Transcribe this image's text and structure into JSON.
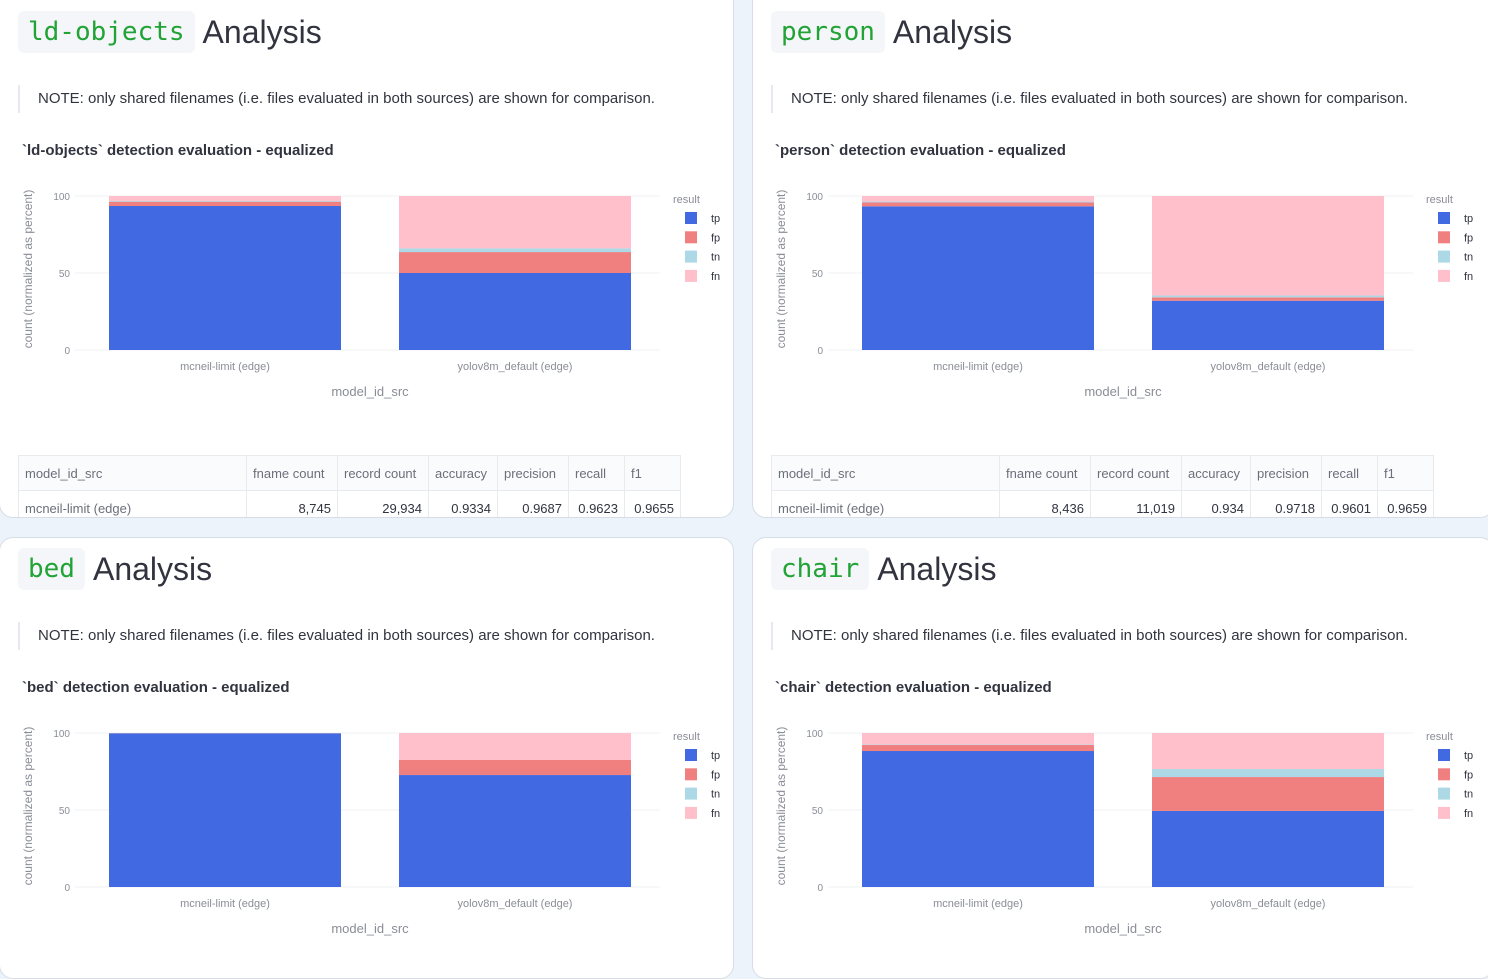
{
  "note": "NOTE: only shared filenames (i.e. files evaluated in both sources) are shown for comparison.",
  "analysis_word": "Analysis",
  "colors": {
    "tp": "#4169e1",
    "fp": "#f08080",
    "tn": "#add8e6",
    "fn": "#ffc0cb"
  },
  "table_headers": [
    "model_id_src",
    "fname count",
    "record count",
    "accuracy",
    "precision",
    "recall",
    "f1"
  ],
  "panels": [
    {
      "label": "ld-objects",
      "chart_title": "`ld-objects` detection evaluation - equalized",
      "table_row": [
        "mcneil-limit (edge)",
        "8,745",
        "29,934",
        "0.9334",
        "0.9687",
        "0.9623",
        "0.9655"
      ]
    },
    {
      "label": "person",
      "chart_title": "`person` detection evaluation - equalized",
      "table_row": [
        "mcneil-limit (edge)",
        "8,436",
        "11,019",
        "0.934",
        "0.9718",
        "0.9601",
        "0.9659"
      ]
    },
    {
      "label": "bed",
      "chart_title": "`bed` detection evaluation - equalized"
    },
    {
      "label": "chair",
      "chart_title": "`chair` detection evaluation - equalized"
    }
  ],
  "chart_data": [
    {
      "type": "bar",
      "stacked": true,
      "categories": [
        "mcneil-limit (edge)",
        "yolov8m_default (edge)"
      ],
      "xlabel": "model_id_src",
      "ylabel": "count (normalized as percent)",
      "ylim": [
        0,
        100
      ],
      "yticks": [
        0,
        50,
        100
      ],
      "legend_title": "result",
      "legend_position": "right",
      "grid": true,
      "series": [
        {
          "name": "tp",
          "values": [
            93.5,
            50
          ]
        },
        {
          "name": "fp",
          "values": [
            2.8,
            13.6
          ]
        },
        {
          "name": "tn",
          "values": [
            0.5,
            2.4
          ]
        },
        {
          "name": "fn",
          "values": [
            3.2,
            34
          ]
        }
      ]
    },
    {
      "type": "bar",
      "stacked": true,
      "categories": [
        "mcneil-limit (edge)",
        "yolov8m_default (edge)"
      ],
      "xlabel": "model_id_src",
      "ylabel": "count (normalized as percent)",
      "ylim": [
        0,
        100
      ],
      "yticks": [
        0,
        50,
        100
      ],
      "legend_title": "result",
      "legend_position": "right",
      "grid": true,
      "series": [
        {
          "name": "tp",
          "values": [
            93.3,
            32
          ]
        },
        {
          "name": "fp",
          "values": [
            2.5,
            2.2
          ]
        },
        {
          "name": "tn",
          "values": [
            0.6,
            1.2
          ]
        },
        {
          "name": "fn",
          "values": [
            3.6,
            64.6
          ]
        }
      ]
    },
    {
      "type": "bar",
      "stacked": true,
      "categories": [
        "mcneil-limit (edge)",
        "yolov8m_default (edge)"
      ],
      "xlabel": "model_id_src",
      "ylabel": "count (normalized as percent)",
      "ylim": [
        0,
        100
      ],
      "yticks": [
        0,
        50,
        100
      ],
      "legend_title": "result",
      "legend_position": "right",
      "grid": true,
      "series": [
        {
          "name": "tp",
          "values": [
            99.8,
            72.7
          ]
        },
        {
          "name": "fp",
          "values": [
            0.1,
            9.8
          ]
        },
        {
          "name": "tn",
          "values": [
            0,
            0
          ]
        },
        {
          "name": "fn",
          "values": [
            0.1,
            17.5
          ]
        }
      ]
    },
    {
      "type": "bar",
      "stacked": true,
      "categories": [
        "mcneil-limit (edge)",
        "yolov8m_default (edge)"
      ],
      "xlabel": "model_id_src",
      "ylabel": "count (normalized as percent)",
      "ylim": [
        0,
        100
      ],
      "yticks": [
        0,
        50,
        100
      ],
      "legend_title": "result",
      "legend_position": "right",
      "grid": true,
      "series": [
        {
          "name": "tp",
          "values": [
            88.3,
            49.4
          ]
        },
        {
          "name": "fp",
          "values": [
            3.9,
            22
          ]
        },
        {
          "name": "tn",
          "values": [
            0.3,
            5.2
          ]
        },
        {
          "name": "fn",
          "values": [
            7.5,
            23.4
          ]
        }
      ]
    }
  ]
}
